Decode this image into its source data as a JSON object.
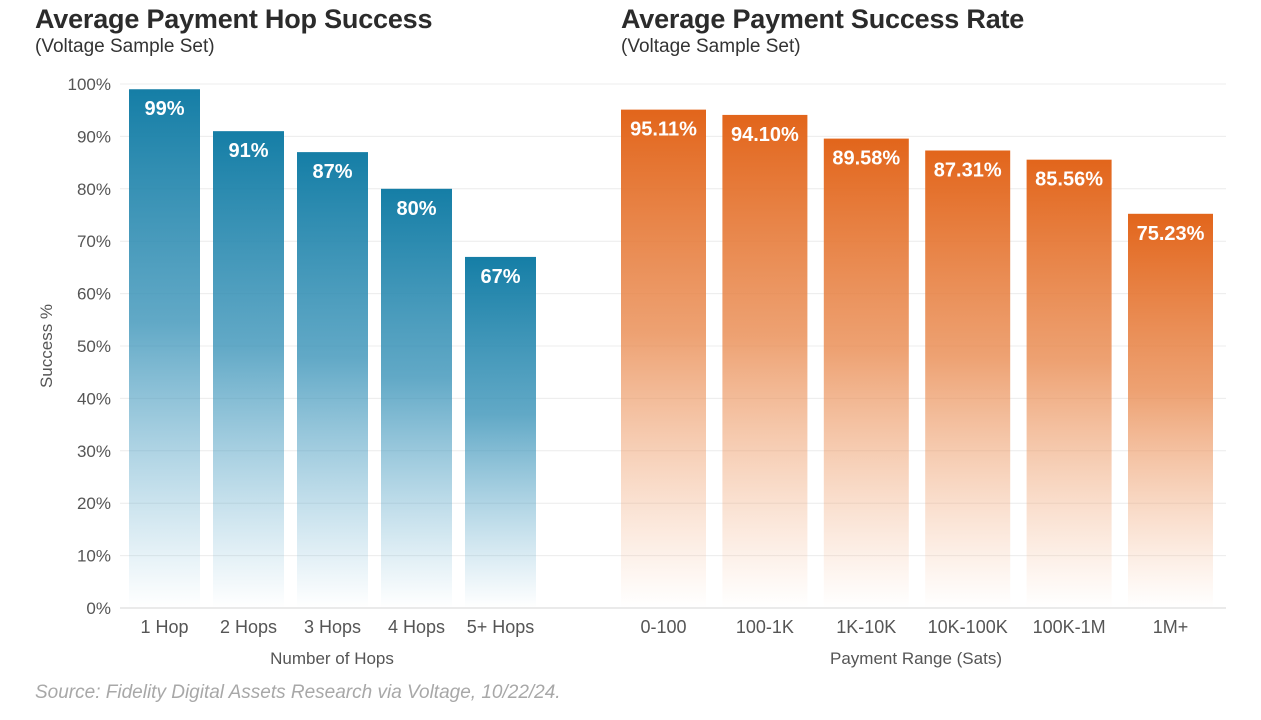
{
  "chart_data": [
    {
      "type": "bar",
      "title": "Average Payment Hop Success",
      "subtitle": "(Voltage Sample Set)",
      "xlabel": "Number of Hops",
      "ylabel": "Success %",
      "ylim": [
        0,
        100
      ],
      "yticks": [
        "0%",
        "10%",
        "20%",
        "30%",
        "40%",
        "50%",
        "60%",
        "70%",
        "80%",
        "90%",
        "100%"
      ],
      "categories": [
        "1 Hop",
        "2 Hops",
        "3 Hops",
        "4 Hops",
        "5+ Hops"
      ],
      "values": [
        99,
        91,
        87,
        80,
        67
      ],
      "data_labels": [
        "99%",
        "91%",
        "87%",
        "80%",
        "67%"
      ],
      "color": "#157ea6",
      "grid": true
    },
    {
      "type": "bar",
      "title": "Average Payment Success Rate",
      "subtitle": "(Voltage Sample Set)",
      "xlabel": "Payment Range (Sats)",
      "ylim": [
        0,
        100
      ],
      "categories": [
        "0-100",
        "100-1K",
        "1K-10K",
        "10K-100K",
        "100K-1M",
        "1M+"
      ],
      "values": [
        95.11,
        94.1,
        89.58,
        87.31,
        85.56,
        75.23
      ],
      "data_labels": [
        "95.11%",
        "94.10%",
        "89.58%",
        "87.31%",
        "85.56%",
        "75.23%"
      ],
      "color": "#e2651b",
      "grid": true
    }
  ],
  "source": "Source: Fidelity Digital Assets Research via Voltage, 10/22/24."
}
